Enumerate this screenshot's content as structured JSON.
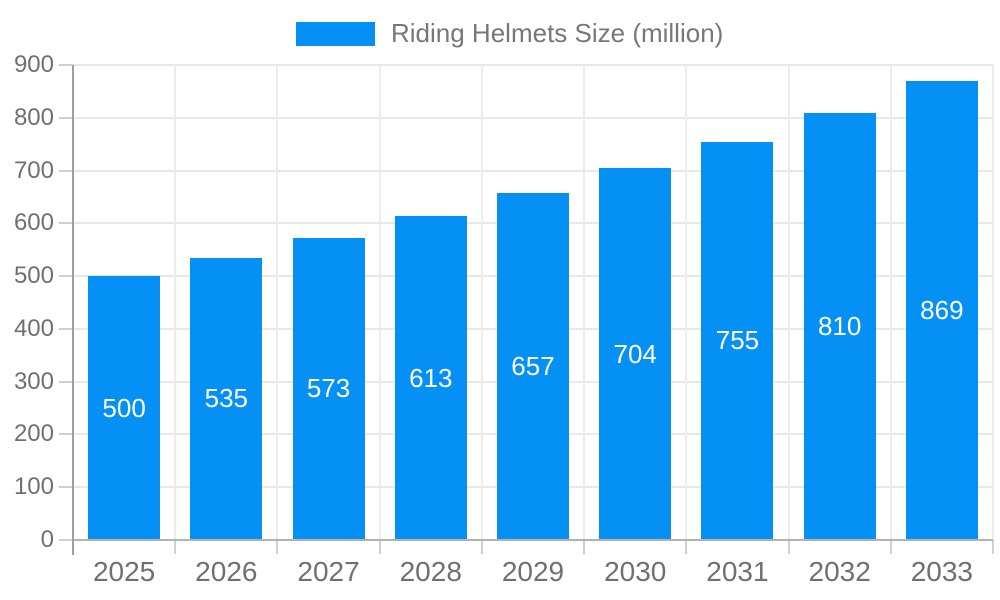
{
  "legend": {
    "label": "Riding Helmets Size (million)"
  },
  "colors": {
    "bar": "#0590F5",
    "axis_line": "#9e9e9e",
    "baseline": "#b2b2b2",
    "gridline": "#e8e8e8",
    "vertical_gridline": "#ececec",
    "tick": "#cfcfcf",
    "axis_label": "#707070",
    "legend_text": "#777777",
    "value_label": "#ffffff",
    "background": "#ffffff"
  },
  "chart_data": {
    "type": "bar",
    "title": "Riding Helmets Size (million)",
    "categories": [
      "2025",
      "2026",
      "2027",
      "2028",
      "2029",
      "2030",
      "2031",
      "2032",
      "2033"
    ],
    "values": [
      500,
      535,
      573,
      613,
      657,
      704,
      755,
      810,
      869
    ],
    "xlabel": "",
    "ylabel": "",
    "ylim": [
      0,
      900
    ],
    "ytick_step": 100,
    "grid": "on",
    "legend_position": "top",
    "value_labels": "inside-center"
  }
}
